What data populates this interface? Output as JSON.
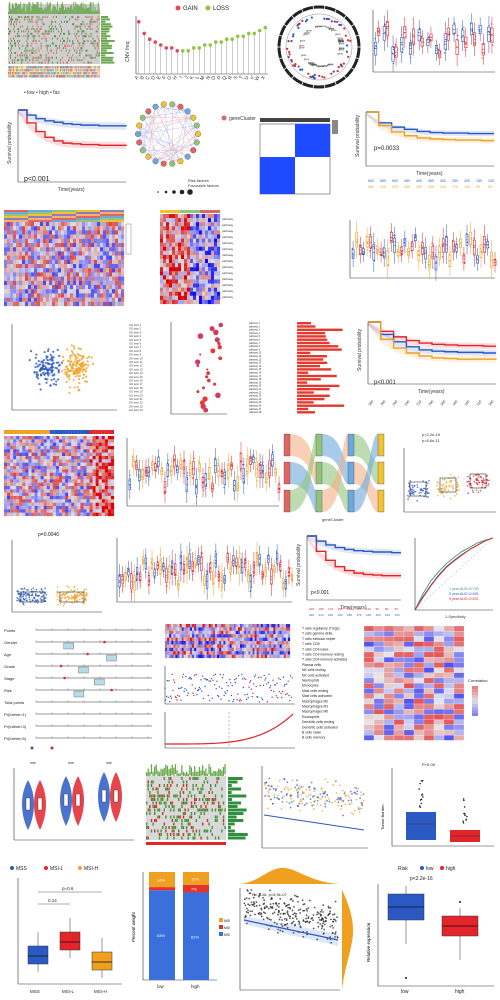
{
  "texts": {
    "cnv_legend_gain": "GAIN",
    "cnv_legend_loss": "LOSS",
    "km1_p": "p<0.001",
    "km2_p": "p=0.0033",
    "km3_p": "p<0.001",
    "km4_p": "p<0.001",
    "network_legend_title": "geneCluster",
    "network_risk": "Risk factors",
    "network_fav": "Favorable factors",
    "sankey_caption": "geneCluster",
    "box_a_title": "p=0.0046",
    "box_b_title": "p = 0.21",
    "tmb_ylab": "Tumor Burden",
    "msi_levels": [
      "MSS",
      "MSI-L",
      "MSI-H"
    ],
    "risk_levels": [
      "low",
      "high"
    ],
    "risk_label": "Risk",
    "km_xlabel": "Time(years)",
    "km_ylabel": "Survival probability",
    "stem_ylab": "Frequency(%)",
    "p_label_1": "p<2.22e-16",
    "p_label_2": "p<2.2e-16",
    "p_label_3": "p=8.6e-11",
    "roc_lines": [
      "1 year AUC=0.730",
      "3 year AUC=0.695",
      "5 year AUC=0.691"
    ],
    "corr_title": "Correlation",
    "immune_rows": [
      "T cells regulatory (Tregs)",
      "T cells gamma delta",
      "T cells follicular helper",
      "T cells CD8",
      "T cells CD4 naive",
      "T cells CD4 memory resting",
      "T cells CD4 memory activated",
      "Plasma cells",
      "NK cells resting",
      "NK cells activated",
      "Neutrophils",
      "Monocytes",
      "Mast cells resting",
      "Mast cells activated",
      "Macrophages M2",
      "Macrophages M1",
      "Macrophages M0",
      "Eosinophils",
      "Dendritic cells resting",
      "Dendritic cells activated",
      "B cells naive",
      "B cells memory"
    ],
    "stack_pct": [
      "14%",
      "3%",
      "83%",
      "12%",
      "7%",
      "81%"
    ],
    "stack_x": [
      "low",
      "high"
    ],
    "stack_legend": [
      "MSI-H",
      "MSI-L",
      "MSS"
    ],
    "pct_label": "Percent weight",
    "scatter_r": "R=-0.16, p=5.9e-07",
    "bot_p": "p<2.2e-16",
    "bot_ylab": "Relative expression"
  },
  "colors": {
    "gain": "#e0495b",
    "loss": "#8dc63f",
    "red": "#e3242b",
    "blue": "#2b59c3",
    "orange": "#f0a020",
    "green": "#2aa05a"
  },
  "chart_data": [
    {
      "type": "bar",
      "title": "",
      "categories": [
        "A",
        "B",
        "C",
        "D",
        "E",
        "F",
        "G",
        "H",
        "I",
        "J",
        "K",
        "L",
        "M",
        "N",
        "O",
        "P",
        "Q",
        "R",
        "S",
        "T",
        "U",
        "V",
        "W",
        "X"
      ],
      "series": [
        {
          "name": "GAIN",
          "values": [
            18,
            14,
            12,
            11,
            10,
            9,
            9,
            8,
            7,
            7,
            6,
            6,
            5,
            5,
            5,
            4,
            4,
            4,
            3,
            3,
            3,
            2,
            2,
            2
          ]
        },
        {
          "name": "LOSS",
          "values": [
            2,
            3,
            4,
            5,
            6,
            6,
            7,
            7,
            8,
            8,
            9,
            9,
            10,
            10,
            11,
            11,
            12,
            12,
            13,
            13,
            14,
            14,
            15,
            16
          ]
        }
      ],
      "ylabel": "CNV freq",
      "ylim": [
        0,
        20
      ]
    },
    {
      "type": "line",
      "title": "",
      "x": [
        0,
        1,
        2,
        3,
        4,
        5,
        6,
        7,
        8,
        9,
        10,
        11,
        12
      ],
      "series": [
        {
          "name": "high",
          "values": [
            1.0,
            0.82,
            0.7,
            0.62,
            0.57,
            0.54,
            0.53,
            0.52,
            0.52,
            0.51,
            0.51,
            0.51,
            0.5
          ]
        },
        {
          "name": "low",
          "values": [
            1.0,
            0.93,
            0.88,
            0.85,
            0.83,
            0.81,
            0.8,
            0.79,
            0.79,
            0.78,
            0.78,
            0.78,
            0.77
          ]
        }
      ],
      "xlabel": "Time(years)",
      "ylabel": "Survival probability",
      "ylim": [
        0,
        1
      ]
    },
    {
      "type": "line",
      "title": "",
      "x": [
        0,
        1,
        2,
        3,
        4,
        5,
        6,
        7,
        8,
        9,
        10
      ],
      "series": [
        {
          "name": "A",
          "values": [
            1.0,
            0.8,
            0.72,
            0.68,
            0.64,
            0.62,
            0.61,
            0.61,
            0.6,
            0.6,
            0.6
          ]
        },
        {
          "name": "B",
          "values": [
            1.0,
            0.75,
            0.63,
            0.56,
            0.52,
            0.5,
            0.49,
            0.48,
            0.48,
            0.47,
            0.47
          ]
        }
      ],
      "xlabel": "Time(years)",
      "ylabel": "Survival probability",
      "ylim": [
        0,
        1
      ]
    },
    {
      "type": "line",
      "title": "",
      "x": [
        0,
        1,
        2,
        3,
        4,
        5,
        6,
        7,
        8,
        9,
        10
      ],
      "series": [
        {
          "name": "A",
          "values": [
            1.0,
            0.85,
            0.76,
            0.7,
            0.66,
            0.64,
            0.63,
            0.62,
            0.62,
            0.61,
            0.61
          ]
        },
        {
          "name": "B",
          "values": [
            1.0,
            0.8,
            0.68,
            0.6,
            0.55,
            0.53,
            0.52,
            0.51,
            0.51,
            0.5,
            0.5
          ]
        },
        {
          "name": "C",
          "values": [
            1.0,
            0.72,
            0.58,
            0.5,
            0.45,
            0.42,
            0.41,
            0.4,
            0.4,
            0.4,
            0.39
          ]
        }
      ],
      "xlabel": "Time(years)",
      "ylabel": "Survival probability",
      "ylim": [
        0,
        1
      ]
    },
    {
      "type": "line",
      "title": "",
      "x": [
        0,
        1,
        2,
        3,
        4,
        5,
        6,
        7,
        8,
        9,
        10
      ],
      "series": [
        {
          "name": "high",
          "values": [
            1.0,
            0.76,
            0.62,
            0.52,
            0.46,
            0.42,
            0.4,
            0.39,
            0.38,
            0.38,
            0.38
          ]
        },
        {
          "name": "low",
          "values": [
            1.0,
            0.92,
            0.86,
            0.82,
            0.79,
            0.77,
            0.76,
            0.75,
            0.75,
            0.74,
            0.74
          ]
        }
      ],
      "xlabel": "Time(years)",
      "ylabel": "Survival probability",
      "ylim": [
        0,
        1
      ]
    },
    {
      "type": "line",
      "title": "",
      "x": [
        0,
        0.1,
        0.2,
        0.3,
        0.4,
        0.5,
        0.6,
        0.7,
        0.8,
        0.9,
        1.0
      ],
      "series": [
        {
          "name": "1 year AUC=0.730",
          "values": [
            0,
            0.22,
            0.4,
            0.53,
            0.64,
            0.73,
            0.81,
            0.87,
            0.93,
            0.97,
            1.0
          ]
        },
        {
          "name": "3 year AUC=0.695",
          "values": [
            0,
            0.18,
            0.34,
            0.48,
            0.6,
            0.69,
            0.77,
            0.84,
            0.9,
            0.96,
            1.0
          ]
        },
        {
          "name": "5 year AUC=0.691",
          "values": [
            0,
            0.17,
            0.33,
            0.47,
            0.59,
            0.68,
            0.76,
            0.84,
            0.9,
            0.96,
            1.0
          ]
        }
      ],
      "xlabel": "1-Specificity",
      "ylabel": "Sensitivity",
      "ylim": [
        0,
        1
      ]
    },
    {
      "type": "bar",
      "title": "",
      "categories": [
        "low",
        "high"
      ],
      "series": [
        {
          "name": "MSS",
          "values": [
            83,
            81
          ]
        },
        {
          "name": "MSI-L",
          "values": [
            3,
            7
          ]
        },
        {
          "name": "MSI-H",
          "values": [
            14,
            12
          ]
        }
      ],
      "ylabel": "Percent weight",
      "ylim": [
        0,
        100
      ]
    }
  ]
}
